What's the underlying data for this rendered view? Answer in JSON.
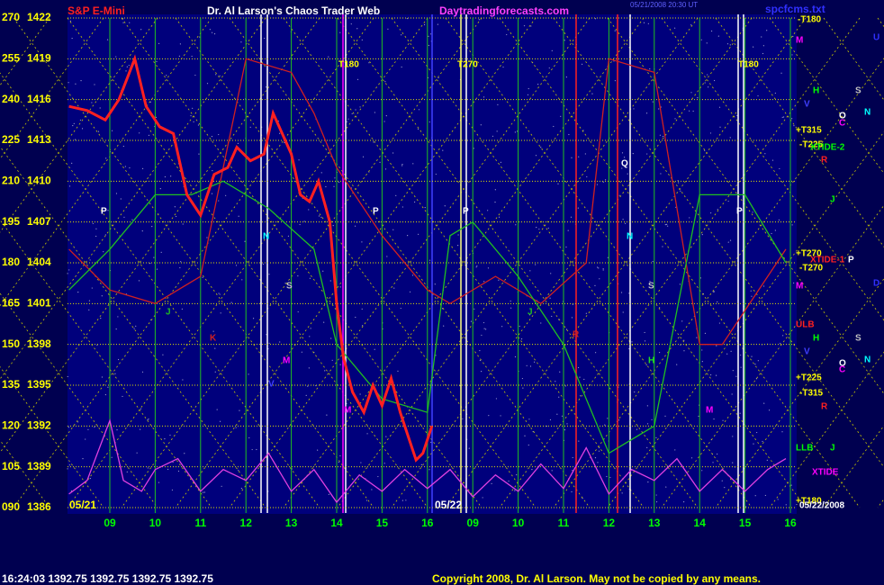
{
  "chart_data": {
    "type": "line",
    "title": "Dr. Al Larson's Chaos Trader Web",
    "symbol": "S&P E-Mini",
    "website": "Daytradingforecasts.com",
    "timestamp": "05/21/2008 20:30 UT",
    "filename": "spcfcms.txt",
    "status": "16:24:03  1392.75 1392.75 1392.75 1392.75",
    "copyright": "Copyright 2008, Dr. Al Larson. May not be copied by any means.",
    "dates": [
      "05/21",
      "05/22"
    ],
    "categories": [
      "09",
      "10",
      "11",
      "12",
      "13",
      "14",
      "15",
      "16",
      "09",
      "10",
      "11",
      "12",
      "13",
      "14",
      "15",
      "16"
    ],
    "ylim": [
      90,
      270
    ],
    "yticks": [
      {
        "value": 90,
        "label": "090"
      },
      105,
      120,
      135,
      150,
      165,
      180,
      195,
      210,
      225,
      240,
      255,
      270
    ],
    "y2lim": [
      1386,
      1422
    ],
    "y2ticks": [
      1386,
      1389,
      1392,
      1395,
      1398,
      1401,
      1404,
      1407,
      1410,
      1413,
      1416,
      1419,
      1422
    ],
    "grid": true,
    "series": [
      {
        "name": "S&P E-Mini",
        "color": "#ff2020",
        "axis": "y2",
        "x": [
          8.1,
          8.5,
          8.9,
          9.2,
          9.55,
          9.8,
          10.1,
          10.4,
          10.7,
          11.0,
          11.3,
          11.6,
          11.8,
          12.1,
          12.4,
          12.6,
          12.8,
          13.0,
          13.2,
          13.4,
          13.6,
          13.85,
          14.0,
          14.15,
          14.35,
          14.6,
          14.8,
          15.0,
          15.2,
          15.4,
          15.6,
          15.75,
          15.9,
          16.1
        ],
        "values": [
          1415.5,
          1415.2,
          1414.5,
          1416,
          1419,
          1415.5,
          1414,
          1413.5,
          1409,
          1407.5,
          1410.5,
          1411,
          1412.5,
          1411.5,
          1412,
          1415,
          1413.5,
          1412,
          1409,
          1408.5,
          1410,
          1407,
          1401,
          1397,
          1394.5,
          1393,
          1395,
          1393.5,
          1395.5,
          1393,
          1391,
          1389.5,
          1390,
          1392
        ]
      },
      {
        "name": "XTIDE",
        "color": "#e040e0",
        "x": [
          8.1,
          8.5,
          9.0,
          9.3,
          9.7,
          10.0,
          10.5,
          11.0,
          11.5,
          12.0,
          12.5,
          13.0,
          13.5,
          14.0,
          14.5,
          15.0,
          15.5,
          16.0,
          16.5,
          17.0,
          17.5,
          18.0,
          18.5,
          19.0,
          19.5,
          20.0,
          20.5,
          21.0,
          21.5,
          22.0,
          22.5,
          23.0,
          23.5,
          23.9
        ],
        "values": [
          95,
          100,
          122,
          100,
          96,
          104,
          108,
          96,
          104,
          100,
          110,
          96,
          104,
          92,
          102,
          96,
          104,
          97,
          104,
          94,
          102,
          96,
          106,
          97,
          112,
          95,
          104,
          100,
          108,
          96,
          104,
          96,
          104,
          108
        ]
      },
      {
        "name": "XTIDE-1",
        "color": "#20c020",
        "x": [
          8.1,
          9.0,
          10.0,
          10.8,
          11.5,
          12.5,
          13.5,
          14.0,
          15.0,
          16.0,
          16.5,
          17.0,
          18.0,
          19.0,
          20.0,
          21.0,
          22.0,
          23.0,
          23.9
        ],
        "values": [
          170,
          185,
          205,
          205,
          210,
          200,
          185,
          150,
          130,
          125,
          190,
          195,
          175,
          150,
          110,
          120,
          205,
          205,
          180
        ]
      },
      {
        "name": "XTIDE-2",
        "color": "#d02020",
        "x": [
          8.1,
          9.0,
          10.0,
          11.0,
          12.0,
          13.0,
          13.5,
          14.0,
          15.0,
          16.0,
          16.5,
          17.5,
          18.5,
          19.5,
          20.0,
          21.0,
          22.0,
          22.5,
          23.9
        ],
        "values": [
          185,
          170,
          165,
          175,
          255,
          250,
          235,
          215,
          190,
          170,
          165,
          175,
          165,
          180,
          255,
          250,
          150,
          150,
          185
        ]
      }
    ],
    "annotations": [
      "T180",
      "T270",
      "T180",
      "P",
      "P",
      "P",
      "P",
      "N",
      "N",
      "S",
      "S",
      "J",
      "J",
      "K",
      "R",
      "M",
      "H",
      "M",
      "M",
      "V",
      "Q",
      "-T180",
      "M",
      "U",
      "H",
      "S",
      "V",
      "N",
      "O",
      "C",
      "+T315",
      "-T225",
      "XTIDE-2",
      "R",
      "J",
      "+T270",
      "XTIDE-1",
      "P",
      "-T270",
      "M",
      "D",
      "ULB",
      "H",
      "S",
      "V",
      "N",
      "O",
      "C",
      "+T225",
      "-T315",
      "R",
      "LLB",
      "J",
      "XTIDE",
      "+T180",
      "05/22/2008"
    ],
    "annotation_colors": [
      "#ffff00",
      "#ffff00",
      "#ffff00",
      "#ffffff",
      "#ffffff",
      "#ffffff",
      "#ffffff",
      "#00ffff",
      "#00ffff",
      "#c0c0c0",
      "#c0c0c0",
      "#20c020",
      "#20c020",
      "#d02020",
      "#d02020",
      "#ff00ff",
      "#20e020",
      "#ff00ff",
      "#ff00ff",
      "#4040ff",
      "#ffffff",
      "#ffff00",
      "#ff00ff",
      "#3030ff",
      "#00ff00",
      "#c0c0c0",
      "#4040ff",
      "#00ffff",
      "#ffffff",
      "#ff00ff",
      "#ffff00",
      "#ffff00",
      "#00ff00",
      "#ff2020",
      "#00ff00",
      "#ffff00",
      "#ff2020",
      "#ffffff",
      "#ffff00",
      "#ff00ff",
      "#3030ff",
      "#ff2020",
      "#00ff00",
      "#c0c0c0",
      "#4040ff",
      "#00ffff",
      "#ffffff",
      "#ff00ff",
      "#ffff00",
      "#ffff00",
      "#ff2020",
      "#00ff00",
      "#00ff00",
      "#ff00ff",
      "#ffff00",
      "#ffffff"
    ]
  }
}
